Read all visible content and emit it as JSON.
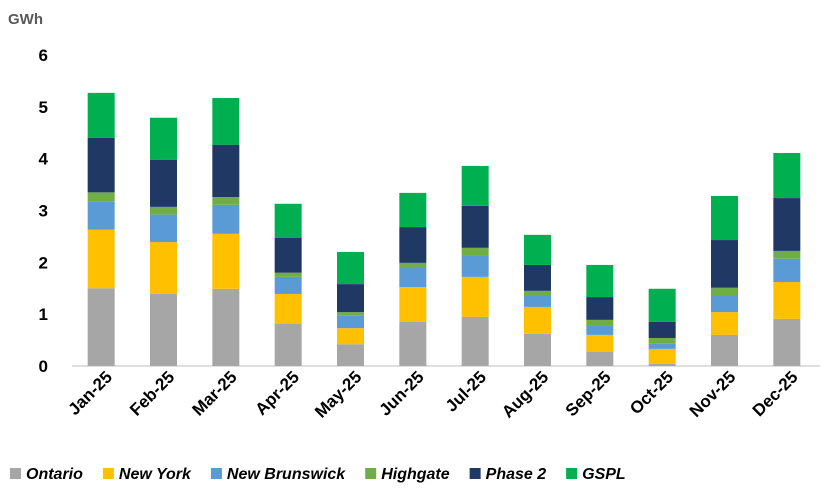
{
  "chart_data": {
    "type": "stacked_bar",
    "y_label": "GWh",
    "categories": [
      "Jan-25",
      "Feb-25",
      "Mar-25",
      "Apr-25",
      "May-25",
      "Jun-25",
      "Jul-25",
      "Aug-25",
      "Sep-25",
      "Oct-25",
      "Nov-25",
      "Dec-25"
    ],
    "series": [
      {
        "name": "Ontario",
        "color": "#a6a6a6",
        "values": [
          1.5,
          1.39,
          1.49,
          0.81,
          0.42,
          0.85,
          0.95,
          0.62,
          0.27,
          0.04,
          0.6,
          0.91
        ]
      },
      {
        "name": "New York",
        "color": "#ffc000",
        "values": [
          1.13,
          1.0,
          1.06,
          0.58,
          0.31,
          0.67,
          0.77,
          0.52,
          0.33,
          0.29,
          0.44,
          0.71
        ]
      },
      {
        "name": "New Brunswick",
        "color": "#5b9bd5",
        "values": [
          0.55,
          0.53,
          0.56,
          0.33,
          0.24,
          0.37,
          0.42,
          0.23,
          0.19,
          0.11,
          0.33,
          0.45
        ]
      },
      {
        "name": "Highgate",
        "color": "#70ad47",
        "values": [
          0.17,
          0.15,
          0.15,
          0.08,
          0.07,
          0.1,
          0.14,
          0.08,
          0.1,
          0.1,
          0.14,
          0.15
        ]
      },
      {
        "name": "Phase 2",
        "color": "#203864",
        "values": [
          1.05,
          0.91,
          1.01,
          0.67,
          0.54,
          0.69,
          0.81,
          0.5,
          0.44,
          0.31,
          0.92,
          1.02
        ]
      },
      {
        "name": "GSPL",
        "color": "#00b050",
        "values": [
          0.87,
          0.81,
          0.9,
          0.66,
          0.62,
          0.66,
          0.77,
          0.58,
          0.62,
          0.64,
          0.85,
          0.87
        ]
      }
    ],
    "ylim": [
      0,
      6
    ],
    "yticks": [
      0,
      1,
      2,
      3,
      4,
      5,
      6
    ],
    "legend": "bottom"
  }
}
